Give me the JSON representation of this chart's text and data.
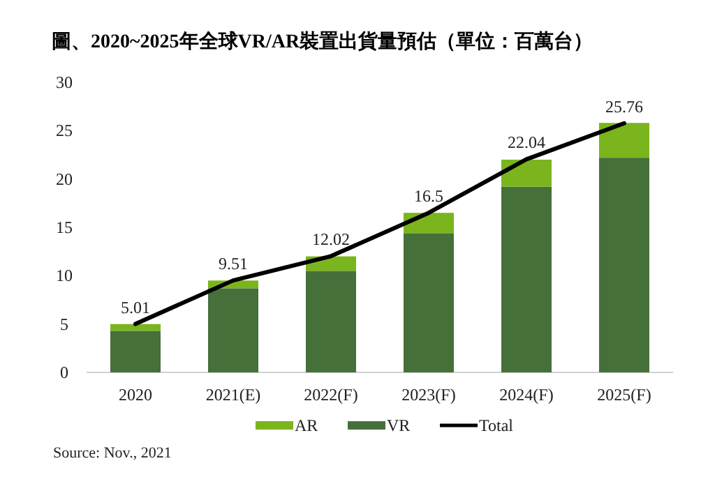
{
  "chart_data": {
    "type": "bar",
    "stacked": true,
    "title": "圖、2020~2025年全球VR/AR裝置出貨量預估（單位：百萬台）",
    "categories": [
      "2020",
      "2021(E)",
      "2022(F)",
      "2023(F)",
      "2024(F)",
      "2025(F)"
    ],
    "series": [
      {
        "name": "VR",
        "color": "#46703a",
        "values": [
          4.3,
          8.7,
          10.5,
          14.4,
          19.2,
          22.2
        ]
      },
      {
        "name": "AR",
        "color": "#7ab51d",
        "values": [
          0.7,
          0.8,
          1.5,
          2.1,
          2.8,
          3.6
        ]
      },
      {
        "name": "Total",
        "type": "line",
        "color": "#000000",
        "values": [
          5.01,
          9.51,
          12.02,
          16.5,
          22.04,
          25.76
        ],
        "value_labels": [
          "5.01",
          "9.51",
          "12.02",
          "16.5",
          "22.04",
          "25.76"
        ]
      }
    ],
    "ylim": [
      0,
      30
    ],
    "yticks": [
      0,
      5,
      10,
      15,
      20,
      25,
      30
    ],
    "legend": "bottom",
    "annotations": [
      "Source: Nov., 2021"
    ]
  }
}
